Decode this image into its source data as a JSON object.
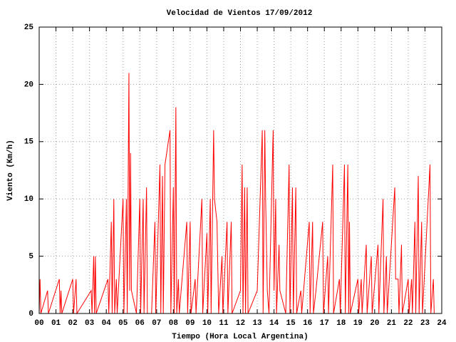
{
  "chart_data": {
    "type": "line",
    "title": "Velocidad de Vientos 17/09/2012",
    "xlabel": "Tiempo (Hora Local Argentina)",
    "ylabel": "Viento (Km/h)",
    "color": "#ff0000",
    "grid": true,
    "xlim": [
      0,
      24
    ],
    "ylim": [
      0,
      25
    ],
    "xticks": [
      {
        "value": 0,
        "label": "00"
      },
      {
        "value": 1,
        "label": "01"
      },
      {
        "value": 2,
        "label": "02"
      },
      {
        "value": 3,
        "label": "03"
      },
      {
        "value": 4,
        "label": "04"
      },
      {
        "value": 5,
        "label": "05"
      },
      {
        "value": 6,
        "label": "06"
      },
      {
        "value": 7,
        "label": "07"
      },
      {
        "value": 8,
        "label": "08"
      },
      {
        "value": 9,
        "label": "09"
      },
      10,
      11,
      12,
      13,
      14,
      15,
      16,
      17,
      18,
      19,
      20,
      21,
      22,
      23,
      24
    ],
    "yticks": [
      0,
      5,
      10,
      15,
      20,
      25
    ],
    "x": [
      0.0,
      0.05,
      0.1,
      0.5,
      0.55,
      1.2,
      1.25,
      1.3,
      1.35,
      2.0,
      2.05,
      2.2,
      2.25,
      3.1,
      3.15,
      3.25,
      3.3,
      3.35,
      3.4,
      4.1,
      4.15,
      4.3,
      4.35,
      4.45,
      4.5,
      4.6,
      4.65,
      5.0,
      5.05,
      5.2,
      5.25,
      5.35,
      5.4,
      5.45,
      5.5,
      5.8,
      6.0,
      6.05,
      6.2,
      6.25,
      6.4,
      6.45,
      6.7,
      6.9,
      6.95,
      7.2,
      7.25,
      7.35,
      7.4,
      7.5,
      7.6,
      7.7,
      7.8,
      7.85,
      8.0,
      8.05,
      8.15,
      8.2,
      8.3,
      8.35,
      8.8,
      8.85,
      9.0,
      9.05,
      9.3,
      9.35,
      9.7,
      9.75,
      10.0,
      10.05,
      10.2,
      10.25,
      10.4,
      10.45,
      10.6,
      10.7,
      10.9,
      10.95,
      11.2,
      11.25,
      11.45,
      11.5,
      12.0,
      12.1,
      12.15,
      12.25,
      12.3,
      12.4,
      12.45,
      13.0,
      13.3,
      13.35,
      13.45,
      13.5,
      13.6,
      13.7,
      13.9,
      13.95,
      14.0,
      14.1,
      14.15,
      14.3,
      14.35,
      14.7,
      14.9,
      14.95,
      15.1,
      15.15,
      15.3,
      15.35,
      15.6,
      15.65,
      16.1,
      16.15,
      16.3,
      16.35,
      16.5,
      16.9,
      16.95,
      17.2,
      17.25,
      17.5,
      17.55,
      17.9,
      17.95,
      18.2,
      18.25,
      18.4,
      18.45,
      18.5,
      18.55,
      19.0,
      19.05,
      19.2,
      19.25,
      19.5,
      19.55,
      19.8,
      19.85,
      20.2,
      20.25,
      20.5,
      20.55,
      20.7,
      20.75,
      21.2,
      21.25,
      21.4,
      21.45,
      21.6,
      21.65,
      22.0,
      22.05,
      22.2,
      22.25,
      22.4,
      22.45,
      22.6,
      22.65,
      22.8,
      22.85,
      23.3,
      23.35,
      23.5,
      23.55
    ],
    "values": [
      0,
      3,
      0,
      2,
      0,
      3,
      0,
      2,
      0,
      3,
      0,
      3,
      0,
      2,
      0,
      5,
      0,
      5,
      0,
      3,
      0,
      8,
      0,
      10,
      0,
      3,
      0,
      10,
      0,
      10,
      0,
      21,
      2,
      14,
      2,
      0,
      10,
      0,
      10,
      0,
      11,
      0,
      0,
      8,
      0,
      13,
      0,
      12,
      0,
      13,
      14,
      15,
      16,
      0,
      11,
      0,
      18,
      0,
      3,
      0,
      8,
      0,
      8,
      0,
      3,
      0,
      10,
      0,
      7,
      0,
      10,
      0,
      16,
      10,
      8,
      0,
      5,
      0,
      8,
      0,
      8,
      0,
      2,
      13,
      0,
      11,
      0,
      11,
      0,
      2,
      16,
      0,
      16,
      10,
      2,
      0,
      13,
      16,
      2,
      10,
      0,
      6,
      2,
      0,
      13,
      0,
      11,
      0,
      11,
      0,
      2,
      0,
      8,
      0,
      8,
      0,
      2,
      8,
      0,
      5,
      0,
      13,
      0,
      3,
      0,
      13,
      0,
      13,
      0,
      8,
      0,
      3,
      0,
      3,
      0,
      6,
      0,
      5,
      0,
      6,
      0,
      10,
      0,
      5,
      0,
      11,
      3,
      3,
      0,
      6,
      0,
      3,
      0,
      3,
      0,
      8,
      0,
      12,
      0,
      8,
      0,
      13,
      0,
      3,
      0
    ]
  }
}
